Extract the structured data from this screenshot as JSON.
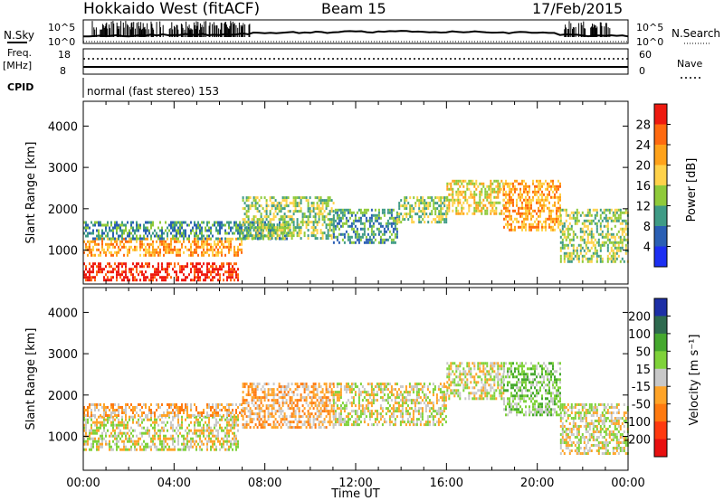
{
  "header": {
    "station": "Hokkaido West (fitACF)",
    "beam": "Beam 15",
    "date": "17/Feb/2015"
  },
  "noise_panel": {
    "left_label": "N.Sky",
    "right_label": "N.Search",
    "tick_top": "10^5",
    "tick_bottom": "10^0"
  },
  "freq_panel": {
    "left_label_line1": "Freq.",
    "left_label_line2": "[MHz]",
    "tick_top": "18",
    "tick_bottom": "8",
    "right_label": "Nave",
    "right_tick_top": "60",
    "right_tick_bottom": "0"
  },
  "cpid_panel": {
    "left_label": "CPID",
    "text": "normal (fast stereo) 153"
  },
  "chart_data": [
    {
      "type": "heatmap",
      "panel": "power",
      "xlabel": "",
      "ylabel": "Slant Range [km]",
      "xlim": [
        0,
        24
      ],
      "ylim": [
        180,
        4600
      ],
      "yticks": [
        1000,
        2000,
        3000,
        4000
      ],
      "xticks_hours": [
        0,
        4,
        8,
        12,
        16,
        20,
        24
      ],
      "colorbar": {
        "label": "Power [dB]",
        "ticks": [
          "4",
          "8",
          "12",
          "16",
          "20",
          "24",
          "28"
        ],
        "colors": [
          "#1c2ff2",
          "#2a5fb4",
          "#3f9b86",
          "#8fca3a",
          "#ffd24a",
          "#ffa21a",
          "#ff6a10",
          "#ee1a10"
        ]
      },
      "echo_bands": [
        {
          "t0": 0.0,
          "t1": 7.0,
          "lo": 900,
          "hi": 1300,
          "level": 5
        },
        {
          "t0": 0.0,
          "t1": 9.0,
          "lo": 1300,
          "hi": 1700,
          "level": 2
        },
        {
          "t0": 0.0,
          "t1": 6.8,
          "lo": 300,
          "hi": 700,
          "level": 7
        },
        {
          "t0": 7.0,
          "t1": 11.0,
          "lo": 1300,
          "hi": 2300,
          "level": 3
        },
        {
          "t0": 11.0,
          "t1": 13.8,
          "lo": 1200,
          "hi": 2000,
          "level": 2
        },
        {
          "t0": 13.8,
          "t1": 16.0,
          "lo": 1700,
          "hi": 2300,
          "level": 3
        },
        {
          "t0": 16.0,
          "t1": 18.5,
          "lo": 1900,
          "hi": 2700,
          "level": 4
        },
        {
          "t0": 18.5,
          "t1": 21.0,
          "lo": 1500,
          "hi": 2700,
          "level": 5
        },
        {
          "t0": 21.0,
          "t1": 24.0,
          "lo": 700,
          "hi": 2000,
          "level": 3
        }
      ]
    },
    {
      "type": "heatmap",
      "panel": "velocity",
      "xlabel": "Time UT",
      "ylabel": "Slant Range [km]",
      "xlim": [
        0,
        24
      ],
      "ylim": [
        180,
        4600
      ],
      "yticks": [
        1000,
        2000,
        3000,
        4000
      ],
      "xtick_labels": [
        "00:00",
        "04:00",
        "08:00",
        "12:00",
        "16:00",
        "20:00",
        "00:00"
      ],
      "colorbar": {
        "label": "Velocity [m s⁻¹]",
        "ticks": [
          "200",
          "100",
          "50",
          "15",
          "-15",
          "-50",
          "-100",
          "-200"
        ],
        "colors": [
          "#1d2fa6",
          "#2e6a4f",
          "#45a82e",
          "#7fd23a",
          "#c8c8c8",
          "#ffa428",
          "#ff7a10",
          "#ff3a10",
          "#e81010"
        ]
      },
      "echo_bands": [
        {
          "t0": 0.0,
          "t1": 6.8,
          "lo": 700,
          "hi": 1500,
          "level": 4
        },
        {
          "t0": 0.0,
          "t1": 7.0,
          "lo": 1500,
          "hi": 1800,
          "level": 5
        },
        {
          "t0": 7.0,
          "t1": 11.0,
          "lo": 1200,
          "hi": 2300,
          "level": 5
        },
        {
          "t0": 11.0,
          "t1": 16.0,
          "lo": 1300,
          "hi": 2300,
          "level": 4
        },
        {
          "t0": 16.0,
          "t1": 18.5,
          "lo": 1900,
          "hi": 2800,
          "level": 4
        },
        {
          "t0": 18.5,
          "t1": 21.0,
          "lo": 1500,
          "hi": 2800,
          "level": 3
        },
        {
          "t0": 21.0,
          "t1": 24.0,
          "lo": 600,
          "hi": 1800,
          "level": 4
        }
      ]
    }
  ]
}
